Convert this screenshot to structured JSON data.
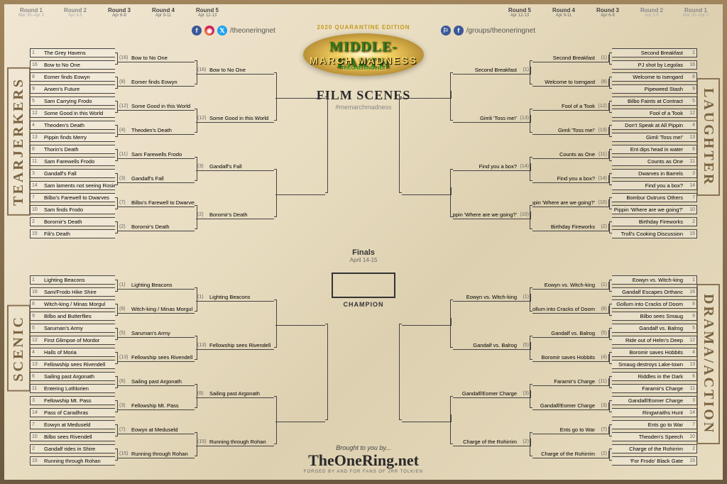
{
  "event": {
    "edition": "2020 QUARANTINE EDITION",
    "title_line1": "MIDDLE-EARTH",
    "title_line2": "MARCH MADNESS",
    "site": "THEONERING.NET",
    "category": "FILM SCENES",
    "hashtag": "#memarchmadness",
    "finals_label": "Finals",
    "finals_dates": "April 14-15",
    "champion_label": "CHAMPION"
  },
  "footer": {
    "brought": "Brought to you by...",
    "logo": "TheOneRing.net",
    "tagline": "FORGED BY AND FOR FANS OF JRR TOLKIEN"
  },
  "social": {
    "left_handle": "/theoneringnet",
    "right_handle": "/groups/theoneringnet"
  },
  "rounds": [
    {
      "n": "Round 1",
      "d": "Mar 30–Apr 2",
      "active": false
    },
    {
      "n": "Round 2",
      "d": "Apr 3-5",
      "active": false
    },
    {
      "n": "Round 3",
      "d": "Apr 6-8",
      "active": true
    },
    {
      "n": "Round 4",
      "d": "Apr 9-11",
      "active": true
    },
    {
      "n": "Round 5",
      "d": "Apr 12-13",
      "active": true
    }
  ],
  "regions": {
    "tl": "TEARJERKERS",
    "bl": "SCENIC",
    "tr": "LAUGHTER",
    "br": "DRAMA/ACTION"
  },
  "colors": {
    "border": "#8b7355",
    "line": "#444444",
    "text_primary": "#2a2a2a",
    "text_muted": "#888888",
    "gold_light": "#f4d264",
    "gold_dark": "#c9a040",
    "green": "#2e7d1e"
  },
  "bracket": {
    "left": {
      "top": {
        "r1": [
          {
            "s": 1,
            "t": "The Grey Havens"
          },
          {
            "s": 16,
            "t": "Bow to No One"
          },
          {
            "s": 8,
            "t": "Eomer finds Eowyn"
          },
          {
            "s": 9,
            "t": "Arwen's Future"
          },
          {
            "s": 5,
            "t": "Sam Carrying Frodo"
          },
          {
            "s": 12,
            "t": "Some Good in this World"
          },
          {
            "s": 4,
            "t": "Theoden's Death"
          },
          {
            "s": 13,
            "t": "Pippin finds Merry"
          },
          {
            "s": 6,
            "t": "Thorin's Death"
          },
          {
            "s": 11,
            "t": "Sam Farewells Frodo"
          },
          {
            "s": 3,
            "t": "Gandalf's Fall"
          },
          {
            "s": 14,
            "t": "Sam laments not seeing Rosie"
          },
          {
            "s": 7,
            "t": "Bilbo's Farewell to Dwarves"
          },
          {
            "s": 10,
            "t": "Sam finds Frodo"
          },
          {
            "s": 2,
            "t": "Boromir's Death"
          },
          {
            "s": 15,
            "t": "Fili's Death"
          }
        ],
        "r2": [
          {
            "s": 16,
            "t": "Bow to No One"
          },
          {
            "s": 8,
            "t": "Eomer finds Eowyn"
          },
          {
            "s": 12,
            "t": "Some Good in this World"
          },
          {
            "s": 4,
            "t": "Theoden's Death"
          },
          {
            "s": 11,
            "t": "Sam Farewells Frodo"
          },
          {
            "s": 3,
            "t": "Gandalf's Fall"
          },
          {
            "s": 7,
            "t": "Bilbo's Farewell to Dwarves"
          },
          {
            "s": 2,
            "t": "Boromir's Death"
          }
        ],
        "r3": [
          {
            "s": 16,
            "t": "Bow to No One"
          },
          {
            "s": 12,
            "t": "Some Good in this World"
          },
          {
            "s": 3,
            "t": "Gandalf's Fall"
          },
          {
            "s": 2,
            "t": "Boromir's Death"
          }
        ]
      },
      "bottom": {
        "r1": [
          {
            "s": 1,
            "t": "Lighting Beacons"
          },
          {
            "s": 16,
            "t": "Sam/Frodo Hike Shire"
          },
          {
            "s": 8,
            "t": "Witch-king / Minas Morgul"
          },
          {
            "s": 9,
            "t": "Bilbo and Butterflies"
          },
          {
            "s": 5,
            "t": "Saruman's Army"
          },
          {
            "s": 12,
            "t": "First Glimpse of Mordor"
          },
          {
            "s": 4,
            "t": "Halls of Moria"
          },
          {
            "s": 13,
            "t": "Fellowship sees Rivendell"
          },
          {
            "s": 6,
            "t": "Sailing past Argonath"
          },
          {
            "s": 11,
            "t": "Entering Lothlorien"
          },
          {
            "s": 3,
            "t": "Fellowship Mt. Pass"
          },
          {
            "s": 14,
            "t": "Pass of Caradhras"
          },
          {
            "s": 7,
            "t": "Eowyn at Meduseld"
          },
          {
            "s": 10,
            "t": "Bilbo sees Rivendell"
          },
          {
            "s": 2,
            "t": "Gandalf rides in Shire"
          },
          {
            "s": 15,
            "t": "Running through Rohan"
          }
        ],
        "r2": [
          {
            "s": 1,
            "t": "Lighting Beacons"
          },
          {
            "s": 8,
            "t": "Witch-king / Minas Morgul"
          },
          {
            "s": 5,
            "t": "Saruman's Army"
          },
          {
            "s": 13,
            "t": "Fellowship sees Rivendell"
          },
          {
            "s": 6,
            "t": "Sailing past Argonath"
          },
          {
            "s": 3,
            "t": "Fellowship Mt. Pass"
          },
          {
            "s": 7,
            "t": "Eowyn at Meduseld"
          },
          {
            "s": 15,
            "t": "Running through Rohan"
          }
        ],
        "r3": [
          {
            "s": 1,
            "t": "Lighting Beacons"
          },
          {
            "s": 13,
            "t": "Fellowship sees Rivendell"
          },
          {
            "s": 6,
            "t": "Sailing past Argonath"
          },
          {
            "s": 15,
            "t": "Running through Rohan"
          }
        ]
      }
    },
    "right": {
      "top": {
        "r1": [
          {
            "s": 1,
            "t": "Second Breakfast"
          },
          {
            "s": 16,
            "t": "PJ shot by Legolas"
          },
          {
            "s": 8,
            "t": "Welcome to Isengard"
          },
          {
            "s": 9,
            "t": "Pipeweed Stash"
          },
          {
            "s": 5,
            "t": "Bilbo Faints at Contract"
          },
          {
            "s": 12,
            "t": "Fool of a Took"
          },
          {
            "s": 4,
            "t": "Don't Speak at All Pippin"
          },
          {
            "s": 13,
            "t": "Gimli 'Toss me!'"
          },
          {
            "s": 6,
            "t": "Ent dips head in water"
          },
          {
            "s": 11,
            "t": "Counts as One"
          },
          {
            "s": 3,
            "t": "Dwarves in Barrels"
          },
          {
            "s": 14,
            "t": "Find you a box?"
          },
          {
            "s": 7,
            "t": "Bombur Outruns Others"
          },
          {
            "s": 10,
            "t": "Pippin 'Where are we going?'"
          },
          {
            "s": 2,
            "t": "Birthday Fireworks"
          },
          {
            "s": 15,
            "t": "Troll's Cooking Discussion"
          }
        ],
        "r2": [
          {
            "s": 1,
            "t": "Second Breakfast"
          },
          {
            "s": 8,
            "t": "Welcome to Isengard"
          },
          {
            "s": 12,
            "t": "Fool of a Took"
          },
          {
            "s": 13,
            "t": "Gimli 'Toss me!'"
          },
          {
            "s": 11,
            "t": "Counts as One"
          },
          {
            "s": 14,
            "t": "Find you a box?"
          },
          {
            "s": 10,
            "t": "Pippin 'Where are we going?'"
          },
          {
            "s": 2,
            "t": "Birthday Fireworks"
          }
        ],
        "r3": [
          {
            "s": 1,
            "t": "Second Breakfast"
          },
          {
            "s": 13,
            "t": "Gimli 'Toss me!'"
          },
          {
            "s": 14,
            "t": "Find you a box?"
          },
          {
            "s": 10,
            "t": "Pippin 'Where are we going?'"
          }
        ]
      },
      "bottom": {
        "r1": [
          {
            "s": 1,
            "t": "Eowyn vs. Witch-king"
          },
          {
            "s": 16,
            "t": "Gandalf Escapes Orthanc"
          },
          {
            "s": 8,
            "t": "Gollum into Cracks of Doom"
          },
          {
            "s": 9,
            "t": "Bilbo sees Smaug"
          },
          {
            "s": 5,
            "t": "Gandalf vs. Balrog"
          },
          {
            "s": 12,
            "t": "Ride out of Helm's Deep"
          },
          {
            "s": 4,
            "t": "Boromir saves Hobbits"
          },
          {
            "s": 13,
            "t": "Smaug destroys Lake-town"
          },
          {
            "s": 6,
            "t": "Riddles in the Dark"
          },
          {
            "s": 11,
            "t": "Faramir's Charge"
          },
          {
            "s": 3,
            "t": "Gandalf/Eomer Charge"
          },
          {
            "s": 14,
            "t": "Ringwraiths Hunt"
          },
          {
            "s": 7,
            "t": "Ents go to War"
          },
          {
            "s": 10,
            "t": "Theoden's Speech"
          },
          {
            "s": 2,
            "t": "Charge of the Rohirrim"
          },
          {
            "s": 15,
            "t": "'For Frodo' Black Gate"
          }
        ],
        "r2": [
          {
            "s": 1,
            "t": "Eowyn vs. Witch-king"
          },
          {
            "s": 8,
            "t": "Gollum into Cracks of Doom"
          },
          {
            "s": 5,
            "t": "Gandalf vs. Balrog"
          },
          {
            "s": 4,
            "t": "Boromir saves Hobbits"
          },
          {
            "s": 11,
            "t": "Faramir's Charge"
          },
          {
            "s": 3,
            "t": "Gandalf/Eomer Charge"
          },
          {
            "s": 7,
            "t": "Ents go to War"
          },
          {
            "s": 2,
            "t": "Charge of the Rohirrim"
          }
        ],
        "r3": [
          {
            "s": 1,
            "t": "Eowyn vs. Witch-king"
          },
          {
            "s": 5,
            "t": "Gandalf vs. Balrog"
          },
          {
            "s": 3,
            "t": "Gandalf/Eomer Charge"
          },
          {
            "s": 2,
            "t": "Charge of the Rohirrim"
          }
        ]
      }
    }
  }
}
